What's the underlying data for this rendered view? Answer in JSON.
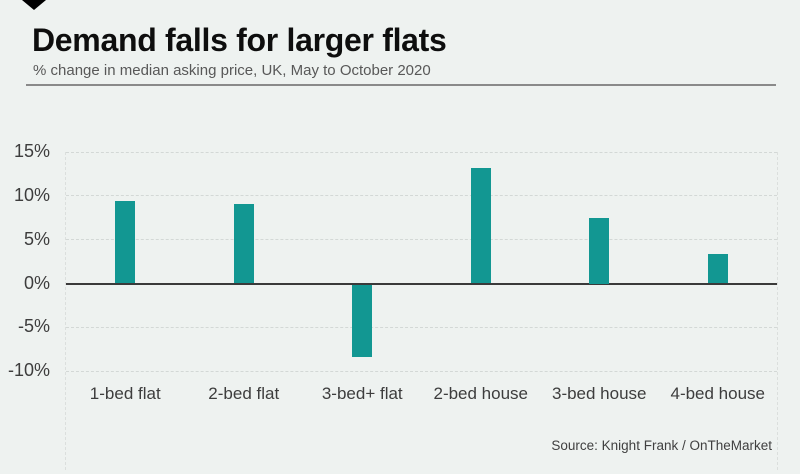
{
  "header": {
    "title": "Demand falls for larger flats",
    "subtitle": "% change in median asking price, UK, May to October 2020"
  },
  "footer": {
    "source": "Source: Knight Frank / OnTheMarket"
  },
  "chart_data": {
    "type": "bar",
    "title": "Demand falls for larger flats",
    "subtitle": "% change in median asking price, UK, May to October 2020",
    "categories": [
      "1-bed flat",
      "2-bed flat",
      "3-bed+ flat",
      "2-bed house",
      "3-bed house",
      "4-bed house"
    ],
    "values": [
      9.4,
      9.1,
      -8.3,
      13.2,
      7.5,
      3.4
    ],
    "xlabel": "",
    "ylabel": "% change",
    "ylim": [
      -10,
      15
    ],
    "yticks": [
      {
        "value": 15,
        "label": "15%"
      },
      {
        "value": 10,
        "label": "10%"
      },
      {
        "value": 5,
        "label": "5%"
      },
      {
        "value": 0,
        "label": "0%"
      },
      {
        "value": -5,
        "label": "-5%"
      },
      {
        "value": -10,
        "label": "-10%"
      }
    ],
    "grid": true,
    "legend": false,
    "source": "Source: Knight Frank / OnTheMarket"
  },
  "colors": {
    "background": "#eef2f0",
    "bar": "#129792",
    "zero_line": "#3a3a3a",
    "gridline": "#d3d8d6",
    "divider": "#8a8a8a",
    "title_text": "#0e0e0e",
    "subtitle_text": "#585858",
    "axis_text": "#3d3d3d",
    "source_text": "#404040"
  }
}
